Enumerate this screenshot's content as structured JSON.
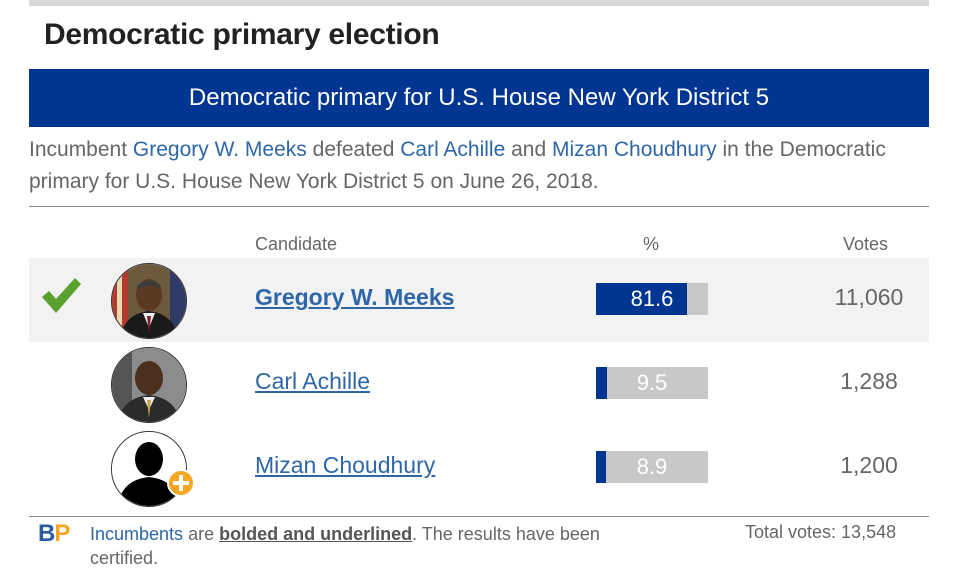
{
  "section_title": "Democratic primary election",
  "banner": "Democratic primary for U.S. House New York District 5",
  "summary": {
    "prefix": "Incumbent",
    "winner": "Gregory W. Meeks",
    "middle1": "defeated",
    "opponent1": "Carl Achille",
    "middle2": "and",
    "opponent2": "Mizan Choudhury",
    "suffix": "in the Democratic primary for U.S. House New York District 5 on June 26, 2018."
  },
  "table": {
    "headers": {
      "candidate": "Candidate",
      "percent": "%",
      "votes": "Votes"
    },
    "rows": [
      {
        "name": "Gregory W. Meeks",
        "percent": "81.6",
        "votes": "11,060",
        "winner": true,
        "incumbent": true
      },
      {
        "name": "Carl Achille",
        "percent": "9.5",
        "votes": "1,288",
        "winner": false,
        "incumbent": false
      },
      {
        "name": "Mizan Choudhury",
        "percent": "8.9",
        "votes": "1,200",
        "winner": false,
        "incumbent": false
      }
    ]
  },
  "footer": {
    "logo_b": "B",
    "logo_p": "P",
    "incumbents_link": "Incumbents",
    "are": "are",
    "bolded": "bolded and underlined",
    "rest": ". The results have been certified.",
    "total_votes": "Total votes: 13,548"
  },
  "colors": {
    "banner": "#003591",
    "link": "#2e66a8",
    "check": "#5aa02c",
    "bar_track": "#c8c8c8",
    "logo_b": "#2c5aa0",
    "logo_p": "#f5a623"
  },
  "icons": [
    "green-check-icon",
    "candidate-photo",
    "silhouette-placeholder-icon",
    "plus-badge-icon"
  ]
}
